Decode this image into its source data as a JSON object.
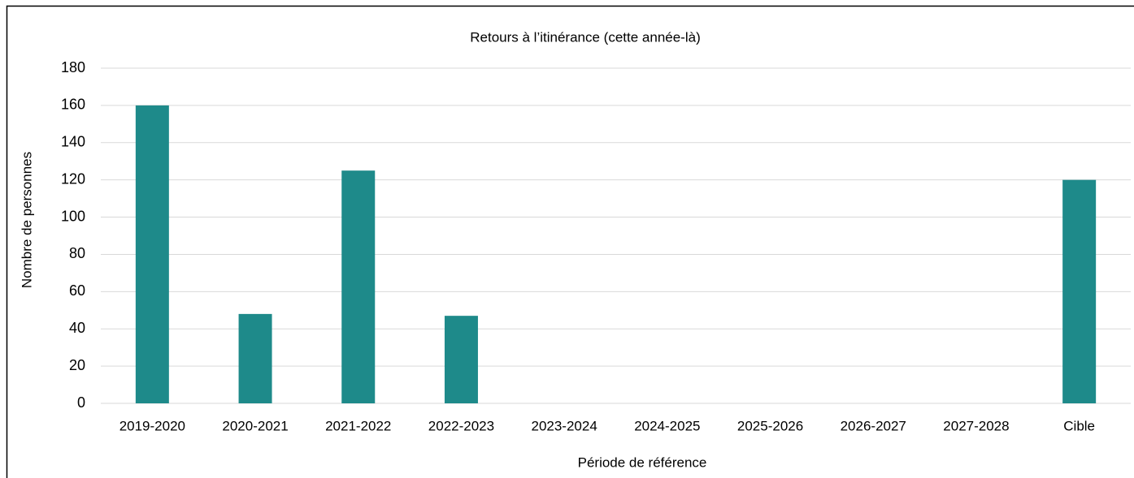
{
  "chart_data": {
    "type": "bar",
    "title": "Retours à l’itinérance  (cette année-là)",
    "x_label": "Période de référence",
    "y_label": "Nombre de personnes",
    "categories": [
      "2019-2020",
      "2020-2021",
      "2021-2022",
      "2022-2023",
      "2023-2024",
      "2024-2025",
      "2025-2026",
      "2026-2027",
      "2027-2028",
      "Cible"
    ],
    "values": [
      160,
      48,
      125,
      47,
      null,
      null,
      null,
      null,
      null,
      120
    ],
    "color": "#1e8a8a",
    "ylim": [
      0,
      180
    ],
    "yticks": [
      0,
      20,
      40,
      60,
      80,
      100,
      120,
      140,
      160,
      180
    ],
    "grid": true
  }
}
